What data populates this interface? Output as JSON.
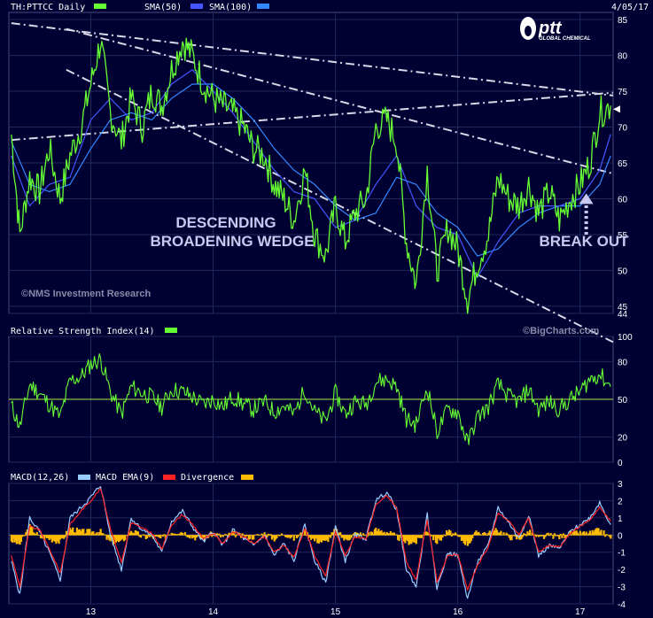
{
  "chart_data": [
    {
      "type": "line",
      "panel": "price",
      "title": "TH:PTTCC Daily",
      "legend": [
        "SMA(50)",
        "SMA(100)"
      ],
      "date_label": "4/05/17",
      "y_ticks": [
        44,
        45,
        50,
        55,
        60,
        65,
        70,
        75,
        80,
        85
      ],
      "x_ticks": [
        "13",
        "14",
        "15",
        "16",
        "17"
      ],
      "x_range": [
        2012.33,
        2017.27
      ],
      "y_range": [
        44,
        86
      ],
      "last_price": 72.5,
      "series": [
        {
          "name": "TH:PTTCC Daily",
          "color": "#66ff33",
          "x": [
            2012.35,
            2012.42,
            2012.5,
            2012.58,
            2012.66,
            2012.75,
            2012.83,
            2012.92,
            2013.0,
            2013.08,
            2013.16,
            2013.25,
            2013.33,
            2013.42,
            2013.5,
            2013.58,
            2013.66,
            2013.75,
            2013.83,
            2013.92,
            2014.0,
            2014.08,
            2014.16,
            2014.25,
            2014.33,
            2014.42,
            2014.5,
            2014.58,
            2014.66,
            2014.75,
            2014.83,
            2014.92,
            2015.0,
            2015.08,
            2015.16,
            2015.25,
            2015.33,
            2015.42,
            2015.5,
            2015.58,
            2015.66,
            2015.75,
            2015.83,
            2015.92,
            2016.0,
            2016.08,
            2016.16,
            2016.25,
            2016.33,
            2016.42,
            2016.5,
            2016.58,
            2016.66,
            2016.75,
            2016.83,
            2016.92,
            2017.0,
            2017.08,
            2017.16,
            2017.25
          ],
          "y": [
            69,
            55,
            63,
            61,
            67,
            60,
            66,
            70,
            76,
            82,
            72,
            68,
            74,
            70,
            75,
            73,
            78,
            82,
            80,
            76,
            74,
            73,
            72,
            70,
            67,
            66,
            62,
            60,
            57,
            64,
            55,
            52,
            59,
            54,
            58,
            60,
            70,
            71,
            68,
            54,
            48,
            64,
            50,
            56,
            53,
            46,
            51,
            55,
            63,
            60,
            59,
            62,
            58,
            61,
            57,
            60,
            62,
            65,
            72,
            73
          ]
        },
        {
          "name": "SMA(50)",
          "color": "#4455ff",
          "x": [
            2012.35,
            2012.5,
            2012.66,
            2012.83,
            2013.0,
            2013.16,
            2013.33,
            2013.5,
            2013.66,
            2013.83,
            2014.0,
            2014.16,
            2014.33,
            2014.5,
            2014.66,
            2014.83,
            2015.0,
            2015.16,
            2015.33,
            2015.5,
            2015.66,
            2015.83,
            2016.0,
            2016.16,
            2016.33,
            2016.5,
            2016.66,
            2016.83,
            2017.0,
            2017.16,
            2017.25
          ],
          "y": [
            66,
            59,
            62,
            63,
            71,
            74,
            71,
            72,
            76,
            78,
            75,
            72,
            68,
            64,
            61,
            60,
            56,
            57,
            62,
            66,
            59,
            56,
            55,
            49,
            54,
            58,
            59,
            59,
            60,
            64,
            69
          ]
        },
        {
          "name": "SMA(100)",
          "color": "#3388ff",
          "x": [
            2012.35,
            2012.5,
            2012.66,
            2012.83,
            2013.0,
            2013.16,
            2013.33,
            2013.5,
            2013.66,
            2013.83,
            2014.0,
            2014.16,
            2014.33,
            2014.5,
            2014.66,
            2014.83,
            2015.0,
            2015.16,
            2015.33,
            2015.5,
            2015.66,
            2015.83,
            2016.0,
            2016.16,
            2016.33,
            2016.5,
            2016.66,
            2016.83,
            2017.0,
            2017.16,
            2017.25
          ],
          "y": [
            68,
            62,
            61,
            62,
            67,
            71,
            72,
            71,
            74,
            76,
            76,
            74,
            71,
            67,
            64,
            62,
            59,
            57,
            58,
            63,
            62,
            58,
            56,
            52,
            53,
            56,
            58,
            59,
            59,
            62,
            66
          ]
        }
      ],
      "annotations": [
        {
          "text": "DESCENDING",
          "x": 2014.0,
          "y": 56.0
        },
        {
          "text": "BROADENING WEDGE",
          "x": 2014.0,
          "y": 52.8
        },
        {
          "text": "BREAK OUT",
          "x": 2017.05,
          "y": 52.8
        },
        {
          "text": "©NMS Investment Research",
          "x": 2012.9,
          "y": 46.6
        }
      ],
      "trendlines": [
        {
          "x": [
            2012.35,
            2017.27
          ],
          "y": [
            84.5,
            74.4
          ]
        },
        {
          "x": [
            2012.35,
            2017.27
          ],
          "y": [
            68.2,
            74.8
          ]
        },
        {
          "x": [
            2012.8,
            2017.27
          ],
          "y": [
            83.7,
            63.5
          ]
        },
        {
          "x": [
            2012.8,
            2017.27
          ],
          "y": [
            78.0,
            40.0
          ]
        }
      ],
      "break_out_arrow": {
        "x": 2017.05,
        "y_from": 55.0,
        "y_to": 60.5
      }
    },
    {
      "type": "line",
      "panel": "rsi",
      "title": "Relative Strength Index(14)",
      "source": "©BigCharts.com",
      "y_ticks": [
        0,
        20,
        50,
        80,
        100
      ],
      "y_range": [
        0,
        100
      ],
      "midline": 50,
      "series": [
        {
          "name": "Relative Strength Index(14)",
          "color": "#66ff33",
          "x": [
            2012.35,
            2012.42,
            2012.5,
            2012.58,
            2012.66,
            2012.75,
            2012.83,
            2012.92,
            2013.0,
            2013.08,
            2013.16,
            2013.25,
            2013.33,
            2013.42,
            2013.5,
            2013.58,
            2013.66,
            2013.75,
            2013.83,
            2013.92,
            2014.0,
            2014.08,
            2014.16,
            2014.25,
            2014.33,
            2014.42,
            2014.5,
            2014.58,
            2014.66,
            2014.75,
            2014.83,
            2014.92,
            2015.0,
            2015.08,
            2015.16,
            2015.25,
            2015.33,
            2015.42,
            2015.5,
            2015.58,
            2015.66,
            2015.75,
            2015.83,
            2015.92,
            2016.0,
            2016.08,
            2016.16,
            2016.25,
            2016.33,
            2016.42,
            2016.5,
            2016.58,
            2016.66,
            2016.75,
            2016.83,
            2016.92,
            2017.0,
            2017.08,
            2017.16,
            2017.25
          ],
          "y": [
            45,
            28,
            62,
            55,
            46,
            36,
            65,
            68,
            78,
            82,
            56,
            38,
            60,
            55,
            52,
            44,
            58,
            56,
            52,
            46,
            50,
            44,
            52,
            46,
            42,
            48,
            40,
            45,
            38,
            58,
            40,
            32,
            55,
            38,
            48,
            46,
            64,
            66,
            60,
            34,
            30,
            60,
            24,
            42,
            40,
            15,
            36,
            44,
            62,
            52,
            48,
            58,
            42,
            48,
            42,
            50,
            56,
            66,
            70,
            60
          ]
        }
      ]
    },
    {
      "type": "line",
      "panel": "macd",
      "title": "MACD(12,26)",
      "legend": [
        "MACD(12,26)",
        "MACD EMA(9)",
        "Divergence"
      ],
      "y_ticks": [
        -4,
        -3,
        -2,
        -1,
        0,
        1,
        2,
        3
      ],
      "y_range": [
        -4,
        3
      ],
      "series": [
        {
          "name": "MACD(12,26)",
          "color": "#99ccff",
          "x": [
            2012.35,
            2012.42,
            2012.5,
            2012.58,
            2012.66,
            2012.75,
            2012.83,
            2012.92,
            2013.0,
            2013.08,
            2013.16,
            2013.25,
            2013.33,
            2013.42,
            2013.5,
            2013.58,
            2013.66,
            2013.75,
            2013.83,
            2013.92,
            2014.0,
            2014.08,
            2014.16,
            2014.25,
            2014.33,
            2014.42,
            2014.5,
            2014.58,
            2014.66,
            2014.75,
            2014.83,
            2014.92,
            2015.0,
            2015.08,
            2015.16,
            2015.25,
            2015.33,
            2015.42,
            2015.5,
            2015.58,
            2015.66,
            2015.75,
            2015.83,
            2015.92,
            2016.0,
            2016.08,
            2016.16,
            2016.25,
            2016.33,
            2016.42,
            2016.5,
            2016.58,
            2016.66,
            2016.75,
            2016.83,
            2016.92,
            2017.0,
            2017.08,
            2017.16,
            2017.25
          ],
          "y": [
            -1.5,
            -3.5,
            1.0,
            0.2,
            -1.0,
            -2.6,
            1.0,
            1.6,
            2.2,
            2.9,
            0.0,
            -2.0,
            1.0,
            0.3,
            0.0,
            -1.0,
            0.8,
            1.4,
            0.5,
            -0.4,
            0.2,
            -0.6,
            0.3,
            -0.2,
            -0.6,
            0.0,
            -1.2,
            -0.5,
            -1.5,
            0.6,
            -1.5,
            -2.8,
            0.5,
            -1.5,
            0.0,
            -0.2,
            2.0,
            2.5,
            1.5,
            -2.0,
            -3.0,
            1.2,
            -3.1,
            -1.0,
            -1.2,
            -3.7,
            -1.6,
            -0.6,
            1.6,
            0.7,
            -0.2,
            1.2,
            -1.2,
            -0.6,
            -0.8,
            0.2,
            0.6,
            1.0,
            1.9,
            0.6
          ]
        },
        {
          "name": "MACD EMA(9)",
          "color": "#ff2222",
          "x": [
            2012.35,
            2012.42,
            2012.5,
            2012.58,
            2012.66,
            2012.75,
            2012.83,
            2012.92,
            2013.0,
            2013.08,
            2013.16,
            2013.25,
            2013.33,
            2013.42,
            2013.5,
            2013.58,
            2013.66,
            2013.75,
            2013.83,
            2013.92,
            2014.0,
            2014.08,
            2014.16,
            2014.25,
            2014.33,
            2014.42,
            2014.5,
            2014.58,
            2014.66,
            2014.75,
            2014.83,
            2014.92,
            2015.0,
            2015.08,
            2015.16,
            2015.25,
            2015.33,
            2015.42,
            2015.5,
            2015.58,
            2015.66,
            2015.75,
            2015.83,
            2015.92,
            2016.0,
            2016.08,
            2016.16,
            2016.25,
            2016.33,
            2016.42,
            2016.5,
            2016.58,
            2016.66,
            2016.75,
            2016.83,
            2016.92,
            2017.0,
            2017.08,
            2017.16,
            2017.25
          ],
          "y": [
            -1.2,
            -3.0,
            0.5,
            0.3,
            -0.8,
            -2.2,
            0.6,
            1.4,
            2.0,
            2.7,
            0.4,
            -1.6,
            0.7,
            0.4,
            0.1,
            -0.8,
            0.6,
            1.2,
            0.6,
            -0.2,
            0.1,
            -0.5,
            0.2,
            -0.1,
            -0.5,
            -0.1,
            -1.0,
            -0.6,
            -1.3,
            0.4,
            -1.2,
            -2.4,
            0.2,
            -1.2,
            -0.1,
            -0.2,
            1.7,
            2.3,
            1.6,
            -1.6,
            -2.6,
            0.9,
            -2.7,
            -1.2,
            -1.1,
            -3.2,
            -1.8,
            -0.7,
            1.3,
            0.8,
            0.0,
            1.0,
            -1.0,
            -0.6,
            -0.7,
            0.1,
            0.5,
            0.9,
            1.6,
            0.8
          ]
        },
        {
          "name": "Divergence",
          "color": "#ffbb00",
          "x": [
            2012.35,
            2012.42,
            2012.5,
            2012.58,
            2012.66,
            2012.75,
            2012.83,
            2012.92,
            2013.0,
            2013.08,
            2013.16,
            2013.25,
            2013.33,
            2013.42,
            2013.5,
            2013.58,
            2013.66,
            2013.75,
            2013.83,
            2013.92,
            2014.0,
            2014.08,
            2014.16,
            2014.25,
            2014.33,
            2014.42,
            2014.5,
            2014.58,
            2014.66,
            2014.75,
            2014.83,
            2014.92,
            2015.0,
            2015.08,
            2015.16,
            2015.25,
            2015.33,
            2015.42,
            2015.5,
            2015.58,
            2015.66,
            2015.75,
            2015.83,
            2015.92,
            2016.0,
            2016.08,
            2016.16,
            2016.25,
            2016.33,
            2016.42,
            2016.5,
            2016.58,
            2016.66,
            2016.75,
            2016.83,
            2016.92,
            2017.0,
            2017.08,
            2017.16,
            2017.25
          ],
          "y": [
            -0.3,
            -0.5,
            0.5,
            -0.1,
            -0.2,
            -0.4,
            0.4,
            0.2,
            0.2,
            0.2,
            -0.4,
            -0.4,
            0.3,
            -0.1,
            -0.1,
            -0.2,
            0.2,
            0.2,
            -0.1,
            -0.2,
            0.1,
            -0.1,
            0.1,
            -0.1,
            -0.1,
            0.1,
            -0.2,
            0.1,
            -0.2,
            0.2,
            -0.3,
            -0.4,
            0.3,
            -0.3,
            0.1,
            0.0,
            0.3,
            0.2,
            -0.1,
            -0.4,
            -0.4,
            0.3,
            -0.4,
            0.2,
            -0.1,
            -0.5,
            0.2,
            0.1,
            0.3,
            -0.1,
            -0.2,
            0.2,
            -0.2,
            0.0,
            -0.1,
            0.1,
            0.1,
            0.1,
            0.3,
            -0.2
          ]
        }
      ]
    }
  ],
  "logo": {
    "brand": "ptt",
    "subtitle": "GLOBAL CHEMICAL"
  }
}
